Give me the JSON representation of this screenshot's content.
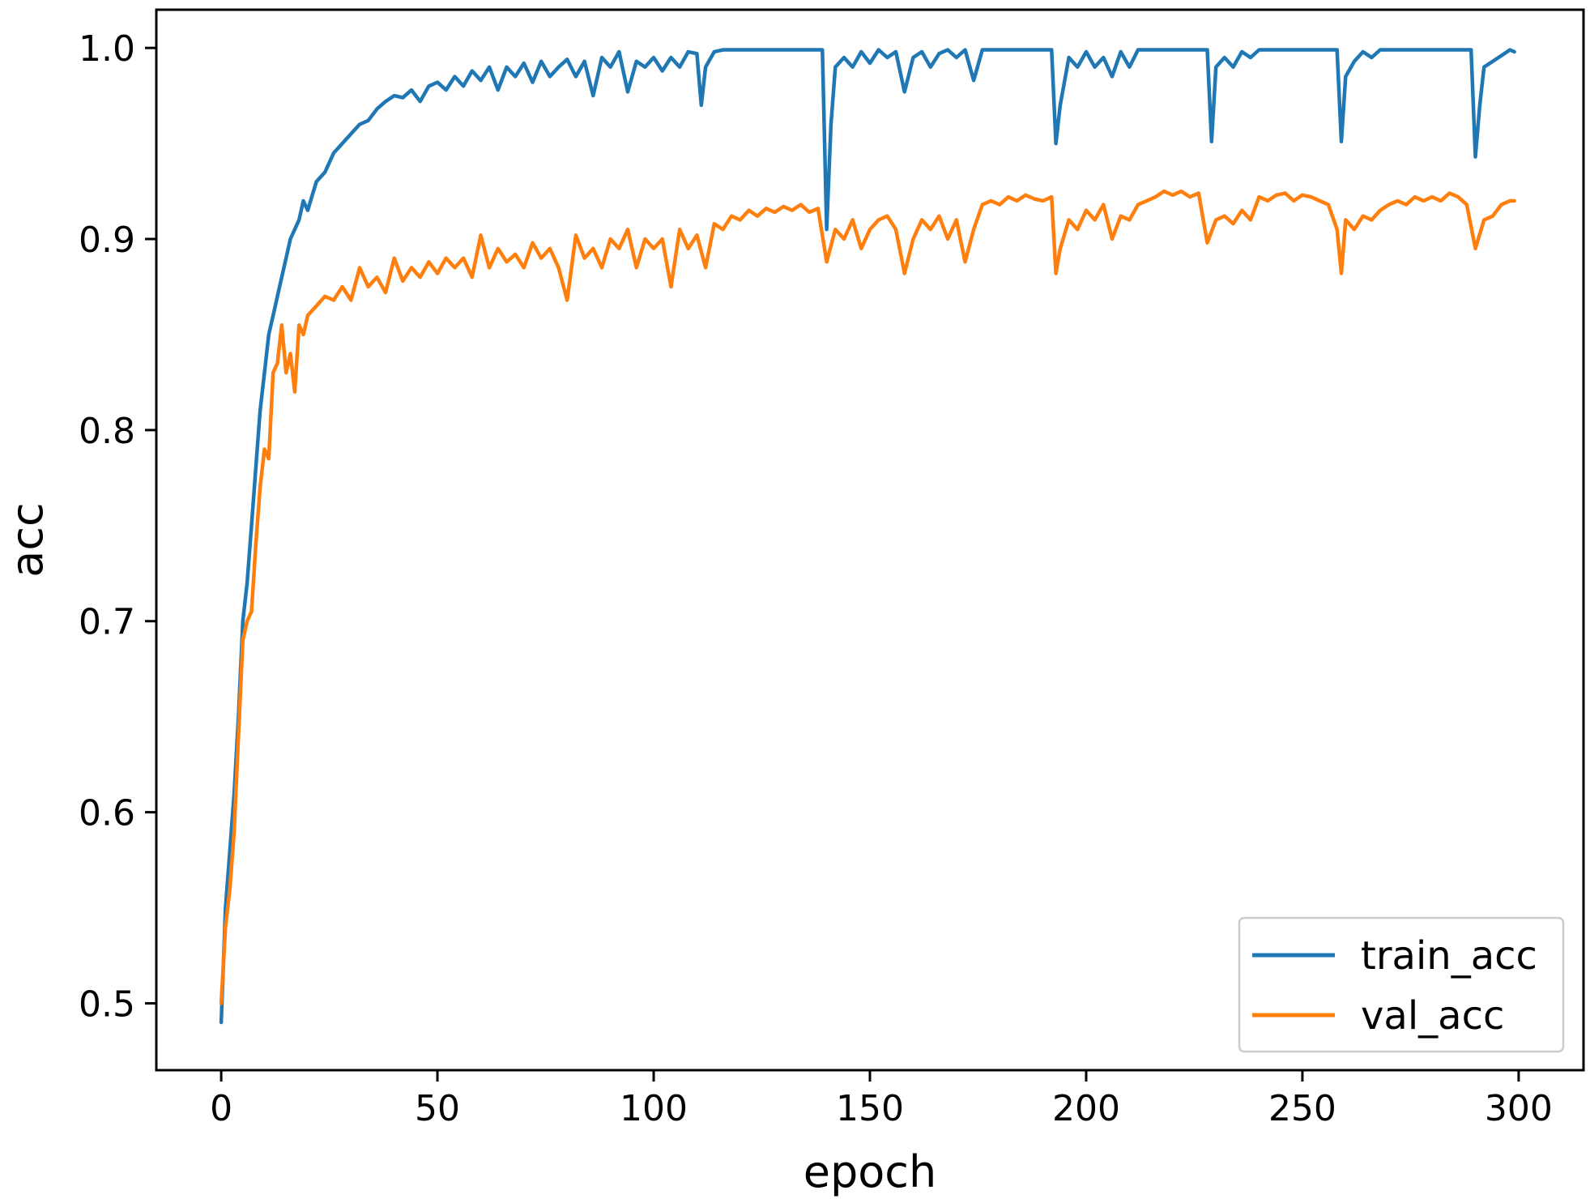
{
  "chart_data": {
    "type": "line",
    "title": "",
    "xlabel": "epoch",
    "ylabel": "acc",
    "xlim": [
      -15,
      315
    ],
    "ylim": [
      0.465,
      1.02
    ],
    "xticks": [
      0,
      50,
      100,
      150,
      200,
      250,
      300
    ],
    "yticks": [
      0.5,
      0.6,
      0.7,
      0.8,
      0.9,
      1.0
    ],
    "xtick_labels": [
      "0",
      "50",
      "100",
      "150",
      "200",
      "250",
      "300"
    ],
    "ytick_labels": [
      "0.5",
      "0.6",
      "0.7",
      "0.8",
      "0.9",
      "1.0"
    ],
    "grid": false,
    "legend_position": "lower-right",
    "series": [
      {
        "name": "train_acc",
        "color": "#1f77b4",
        "points": [
          [
            0,
            0.49
          ],
          [
            1,
            0.55
          ],
          [
            2,
            0.58
          ],
          [
            3,
            0.61
          ],
          [
            4,
            0.65
          ],
          [
            5,
            0.7
          ],
          [
            6,
            0.72
          ],
          [
            7,
            0.75
          ],
          [
            8,
            0.78
          ],
          [
            9,
            0.81
          ],
          [
            10,
            0.83
          ],
          [
            11,
            0.85
          ],
          [
            12,
            0.86
          ],
          [
            13,
            0.87
          ],
          [
            14,
            0.88
          ],
          [
            15,
            0.89
          ],
          [
            16,
            0.9
          ],
          [
            17,
            0.905
          ],
          [
            18,
            0.91
          ],
          [
            19,
            0.92
          ],
          [
            20,
            0.915
          ],
          [
            22,
            0.93
          ],
          [
            24,
            0.935
          ],
          [
            26,
            0.945
          ],
          [
            28,
            0.95
          ],
          [
            30,
            0.955
          ],
          [
            32,
            0.96
          ],
          [
            34,
            0.962
          ],
          [
            36,
            0.968
          ],
          [
            38,
            0.972
          ],
          [
            40,
            0.975
          ],
          [
            42,
            0.974
          ],
          [
            44,
            0.978
          ],
          [
            46,
            0.972
          ],
          [
            48,
            0.98
          ],
          [
            50,
            0.982
          ],
          [
            52,
            0.978
          ],
          [
            54,
            0.985
          ],
          [
            56,
            0.98
          ],
          [
            58,
            0.988
          ],
          [
            60,
            0.983
          ],
          [
            62,
            0.99
          ],
          [
            64,
            0.978
          ],
          [
            66,
            0.99
          ],
          [
            68,
            0.985
          ],
          [
            70,
            0.992
          ],
          [
            72,
            0.982
          ],
          [
            74,
            0.993
          ],
          [
            76,
            0.985
          ],
          [
            78,
            0.99
          ],
          [
            80,
            0.994
          ],
          [
            82,
            0.985
          ],
          [
            84,
            0.993
          ],
          [
            86,
            0.975
          ],
          [
            88,
            0.995
          ],
          [
            90,
            0.99
          ],
          [
            92,
            0.998
          ],
          [
            94,
            0.977
          ],
          [
            96,
            0.993
          ],
          [
            98,
            0.99
          ],
          [
            100,
            0.995
          ],
          [
            102,
            0.988
          ],
          [
            104,
            0.995
          ],
          [
            106,
            0.99
          ],
          [
            108,
            0.998
          ],
          [
            110,
            0.997
          ],
          [
            111,
            0.97
          ],
          [
            112,
            0.99
          ],
          [
            114,
            0.998
          ],
          [
            116,
            0.999
          ],
          [
            120,
            0.999
          ],
          [
            125,
            0.999
          ],
          [
            130,
            0.999
          ],
          [
            135,
            0.999
          ],
          [
            138,
            0.999
          ],
          [
            139,
            0.999
          ],
          [
            140,
            0.905
          ],
          [
            141,
            0.96
          ],
          [
            142,
            0.99
          ],
          [
            144,
            0.995
          ],
          [
            146,
            0.99
          ],
          [
            148,
            0.998
          ],
          [
            150,
            0.992
          ],
          [
            152,
            0.999
          ],
          [
            154,
            0.995
          ],
          [
            156,
            0.998
          ],
          [
            158,
            0.977
          ],
          [
            160,
            0.995
          ],
          [
            162,
            0.998
          ],
          [
            164,
            0.99
          ],
          [
            166,
            0.997
          ],
          [
            168,
            0.999
          ],
          [
            170,
            0.995
          ],
          [
            172,
            0.999
          ],
          [
            174,
            0.983
          ],
          [
            176,
            0.999
          ],
          [
            180,
            0.999
          ],
          [
            185,
            0.999
          ],
          [
            190,
            0.999
          ],
          [
            192,
            0.999
          ],
          [
            193,
            0.95
          ],
          [
            194,
            0.97
          ],
          [
            196,
            0.995
          ],
          [
            198,
            0.99
          ],
          [
            200,
            0.998
          ],
          [
            202,
            0.99
          ],
          [
            204,
            0.995
          ],
          [
            206,
            0.985
          ],
          [
            208,
            0.998
          ],
          [
            210,
            0.99
          ],
          [
            212,
            0.999
          ],
          [
            216,
            0.999
          ],
          [
            220,
            0.999
          ],
          [
            225,
            0.999
          ],
          [
            228,
            0.999
          ],
          [
            229,
            0.951
          ],
          [
            230,
            0.99
          ],
          [
            232,
            0.995
          ],
          [
            234,
            0.99
          ],
          [
            236,
            0.998
          ],
          [
            238,
            0.995
          ],
          [
            240,
            0.999
          ],
          [
            245,
            0.999
          ],
          [
            250,
            0.999
          ],
          [
            255,
            0.999
          ],
          [
            258,
            0.999
          ],
          [
            259,
            0.951
          ],
          [
            260,
            0.985
          ],
          [
            262,
            0.993
          ],
          [
            264,
            0.998
          ],
          [
            266,
            0.995
          ],
          [
            268,
            0.999
          ],
          [
            272,
            0.999
          ],
          [
            276,
            0.999
          ],
          [
            280,
            0.999
          ],
          [
            285,
            0.999
          ],
          [
            289,
            0.999
          ],
          [
            290,
            0.943
          ],
          [
            291,
            0.97
          ],
          [
            292,
            0.99
          ],
          [
            294,
            0.993
          ],
          [
            296,
            0.996
          ],
          [
            298,
            0.999
          ],
          [
            299,
            0.998
          ]
        ]
      },
      {
        "name": "val_acc",
        "color": "#ff7f0e",
        "points": [
          [
            0,
            0.5
          ],
          [
            1,
            0.54
          ],
          [
            2,
            0.56
          ],
          [
            3,
            0.59
          ],
          [
            4,
            0.64
          ],
          [
            5,
            0.69
          ],
          [
            6,
            0.7
          ],
          [
            7,
            0.705
          ],
          [
            8,
            0.74
          ],
          [
            9,
            0.77
          ],
          [
            10,
            0.79
          ],
          [
            11,
            0.785
          ],
          [
            12,
            0.83
          ],
          [
            13,
            0.835
          ],
          [
            14,
            0.855
          ],
          [
            15,
            0.83
          ],
          [
            16,
            0.84
          ],
          [
            17,
            0.82
          ],
          [
            18,
            0.855
          ],
          [
            19,
            0.85
          ],
          [
            20,
            0.86
          ],
          [
            22,
            0.865
          ],
          [
            24,
            0.87
          ],
          [
            26,
            0.868
          ],
          [
            28,
            0.875
          ],
          [
            30,
            0.868
          ],
          [
            32,
            0.885
          ],
          [
            34,
            0.875
          ],
          [
            36,
            0.88
          ],
          [
            38,
            0.872
          ],
          [
            40,
            0.89
          ],
          [
            42,
            0.878
          ],
          [
            44,
            0.885
          ],
          [
            46,
            0.88
          ],
          [
            48,
            0.888
          ],
          [
            50,
            0.882
          ],
          [
            52,
            0.89
          ],
          [
            54,
            0.885
          ],
          [
            56,
            0.89
          ],
          [
            58,
            0.88
          ],
          [
            60,
            0.902
          ],
          [
            62,
            0.885
          ],
          [
            64,
            0.895
          ],
          [
            66,
            0.888
          ],
          [
            68,
            0.892
          ],
          [
            70,
            0.885
          ],
          [
            72,
            0.898
          ],
          [
            74,
            0.89
          ],
          [
            76,
            0.895
          ],
          [
            78,
            0.885
          ],
          [
            80,
            0.868
          ],
          [
            82,
            0.902
          ],
          [
            84,
            0.89
          ],
          [
            86,
            0.895
          ],
          [
            88,
            0.885
          ],
          [
            90,
            0.9
          ],
          [
            92,
            0.895
          ],
          [
            94,
            0.905
          ],
          [
            96,
            0.885
          ],
          [
            98,
            0.9
          ],
          [
            100,
            0.895
          ],
          [
            102,
            0.9
          ],
          [
            104,
            0.875
          ],
          [
            106,
            0.905
          ],
          [
            108,
            0.895
          ],
          [
            110,
            0.902
          ],
          [
            112,
            0.885
          ],
          [
            114,
            0.908
          ],
          [
            116,
            0.905
          ],
          [
            118,
            0.912
          ],
          [
            120,
            0.91
          ],
          [
            122,
            0.915
          ],
          [
            124,
            0.912
          ],
          [
            126,
            0.916
          ],
          [
            128,
            0.914
          ],
          [
            130,
            0.917
          ],
          [
            132,
            0.915
          ],
          [
            134,
            0.918
          ],
          [
            136,
            0.914
          ],
          [
            138,
            0.916
          ],
          [
            140,
            0.888
          ],
          [
            142,
            0.905
          ],
          [
            144,
            0.9
          ],
          [
            146,
            0.91
          ],
          [
            148,
            0.895
          ],
          [
            150,
            0.905
          ],
          [
            152,
            0.91
          ],
          [
            154,
            0.912
          ],
          [
            156,
            0.905
          ],
          [
            158,
            0.882
          ],
          [
            160,
            0.9
          ],
          [
            162,
            0.91
          ],
          [
            164,
            0.905
          ],
          [
            166,
            0.912
          ],
          [
            168,
            0.9
          ],
          [
            170,
            0.91
          ],
          [
            172,
            0.888
          ],
          [
            174,
            0.905
          ],
          [
            176,
            0.918
          ],
          [
            178,
            0.92
          ],
          [
            180,
            0.918
          ],
          [
            182,
            0.922
          ],
          [
            184,
            0.92
          ],
          [
            186,
            0.923
          ],
          [
            188,
            0.921
          ],
          [
            190,
            0.92
          ],
          [
            192,
            0.922
          ],
          [
            193,
            0.882
          ],
          [
            194,
            0.895
          ],
          [
            196,
            0.91
          ],
          [
            198,
            0.905
          ],
          [
            200,
            0.915
          ],
          [
            202,
            0.91
          ],
          [
            204,
            0.918
          ],
          [
            206,
            0.9
          ],
          [
            208,
            0.912
          ],
          [
            210,
            0.91
          ],
          [
            212,
            0.918
          ],
          [
            214,
            0.92
          ],
          [
            216,
            0.922
          ],
          [
            218,
            0.925
          ],
          [
            220,
            0.923
          ],
          [
            222,
            0.925
          ],
          [
            224,
            0.922
          ],
          [
            226,
            0.924
          ],
          [
            228,
            0.898
          ],
          [
            230,
            0.91
          ],
          [
            232,
            0.912
          ],
          [
            234,
            0.908
          ],
          [
            236,
            0.915
          ],
          [
            238,
            0.91
          ],
          [
            240,
            0.922
          ],
          [
            242,
            0.92
          ],
          [
            244,
            0.923
          ],
          [
            246,
            0.924
          ],
          [
            248,
            0.92
          ],
          [
            250,
            0.923
          ],
          [
            252,
            0.922
          ],
          [
            254,
            0.92
          ],
          [
            256,
            0.918
          ],
          [
            258,
            0.905
          ],
          [
            259,
            0.882
          ],
          [
            260,
            0.91
          ],
          [
            262,
            0.905
          ],
          [
            264,
            0.912
          ],
          [
            266,
            0.91
          ],
          [
            268,
            0.915
          ],
          [
            270,
            0.918
          ],
          [
            272,
            0.92
          ],
          [
            274,
            0.918
          ],
          [
            276,
            0.922
          ],
          [
            278,
            0.92
          ],
          [
            280,
            0.922
          ],
          [
            282,
            0.92
          ],
          [
            284,
            0.924
          ],
          [
            286,
            0.922
          ],
          [
            288,
            0.918
          ],
          [
            290,
            0.895
          ],
          [
            292,
            0.91
          ],
          [
            294,
            0.912
          ],
          [
            296,
            0.918
          ],
          [
            298,
            0.92
          ],
          [
            299,
            0.92
          ]
        ]
      }
    ]
  }
}
